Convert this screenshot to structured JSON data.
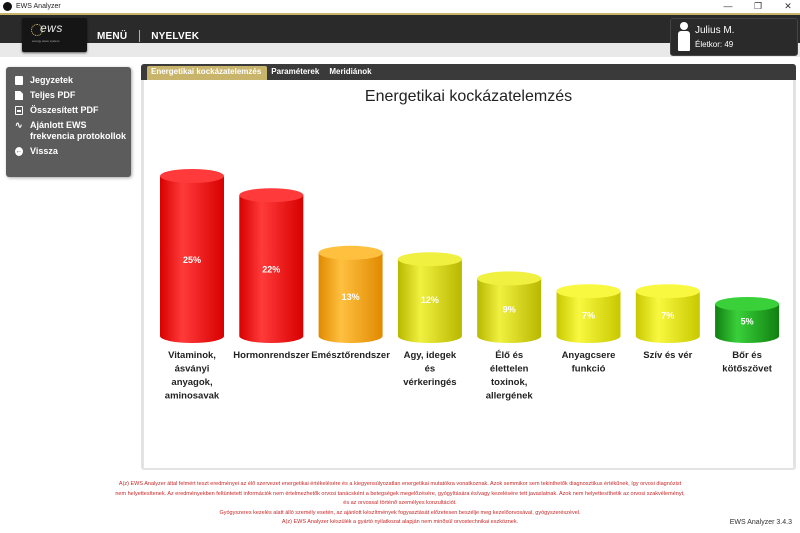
{
  "window": {
    "title": "EWS Analyzer",
    "controls": [
      "—",
      "❐",
      "✕"
    ]
  },
  "header": {
    "logo_text": "ews",
    "logo_sub": "energy wave system",
    "nav": [
      "MENÜ",
      "NYELVEK"
    ],
    "user": {
      "name": "Julius M.",
      "age_line": "Életkor: 49"
    }
  },
  "sidebar": {
    "items": [
      {
        "label": "Jegyzetek",
        "icon": "note-icon"
      },
      {
        "label": "Teljes PDF",
        "icon": "document-icon"
      },
      {
        "label": "Összesített PDF",
        "icon": "pdf-icon"
      },
      {
        "label": "Ajánlott EWS frekvencia protokollok",
        "icon": "wave-icon"
      },
      {
        "label": "Vissza",
        "icon": "back-arrow-icon"
      }
    ]
  },
  "tabs": [
    "Energetikai kockázatelemzés",
    "Paraméterek",
    "Meridiánok"
  ],
  "active_tab": 0,
  "chart_data": {
    "type": "bar",
    "title": "Energetikai kockázatelemzés",
    "unit": "%",
    "categories": [
      "Vitaminok, ásványi anyagok, aminosavak",
      "Hormonrendszer",
      "Emésztőrendszer",
      "Agy, idegek és vérkeringés",
      "Élő és élettelen toxinok, allergének",
      "Anyagcsere funkció",
      "Szív és vér",
      "Bőr és kötőszövet"
    ],
    "values": [
      25,
      22,
      13,
      12,
      9,
      7,
      7,
      5
    ],
    "colors": [
      [
        "#ff3a3a",
        "#d80000"
      ],
      [
        "#ff3a3a",
        "#d80000"
      ],
      [
        "#ffc040",
        "#e08a00"
      ],
      [
        "#f0f040",
        "#b8b800"
      ],
      [
        "#f0f040",
        "#b8b800"
      ],
      [
        "#f8f840",
        "#c8c800"
      ],
      [
        "#f8f840",
        "#c8c800"
      ],
      [
        "#3ad03a",
        "#108010"
      ]
    ],
    "grid": false,
    "legend": "none"
  },
  "footer": {
    "disclaimer_lines": [
      "A(z) EWS Analyzer által felmért teszt eredményei az élő szervezet energetikai értékelésére és a kiegyensúlyozatlan energetikai mutatókra vonatkoznak. Azok semmikor sem tekinthetők diagnosztikus értékűnek, így orvosi diagnózist",
      "nem helyettesítenek. Az eredményekben feltüntetett információk nem értelmezhetők orvosi tanácsként a betegségek megelőzésére, gyógyítására és/vagy kezelésére tett javaslatnak. Azok nem helyettesíthetik az orvosi szakvéleményt,",
      "és az orvossal történő személyes konzultációt.",
      "Gyógyszeres kezelés alatt álló személy esetén, az ajánlott készítmények fogyasztását előzetesen beszélje meg kezelőorvosával, gyógyszerészével.",
      "A(z) EWS Analyzer készülék a gyártó nyilatkozat alapján nem minősül orvostechnikai eszköznek."
    ],
    "version": "EWS Analyzer 3.4.3"
  }
}
